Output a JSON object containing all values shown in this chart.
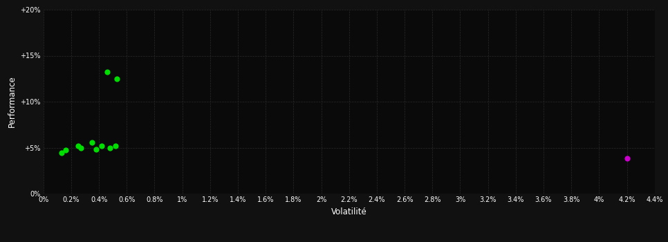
{
  "background_color": "#111111",
  "plot_bg_color": "#0a0a0a",
  "grid_color": "#2a2a2a",
  "text_color": "#ffffff",
  "xlabel": "Volatilité",
  "ylabel": "Performance",
  "xlim": [
    0,
    0.044
  ],
  "ylim": [
    0,
    0.2
  ],
  "xtick_step": 0.002,
  "ytick_vals": [
    0,
    0.05,
    0.1,
    0.15,
    0.2
  ],
  "ytick_labels": [
    "0%",
    "+5%",
    "+10%",
    "+15%",
    "+20%"
  ],
  "green_points": [
    [
      0.0013,
      0.044
    ],
    [
      0.0016,
      0.047
    ],
    [
      0.0025,
      0.052
    ],
    [
      0.0027,
      0.05
    ],
    [
      0.0035,
      0.056
    ],
    [
      0.0038,
      0.048
    ],
    [
      0.0042,
      0.052
    ],
    [
      0.0048,
      0.05
    ],
    [
      0.0052,
      0.052
    ],
    [
      0.0046,
      0.132
    ],
    [
      0.0053,
      0.125
    ]
  ],
  "magenta_points": [
    [
      0.042,
      0.038
    ]
  ],
  "green_color": "#00dd00",
  "magenta_color": "#cc00cc",
  "dot_size": 35,
  "figsize": [
    9.66,
    3.5
  ],
  "dpi": 100
}
